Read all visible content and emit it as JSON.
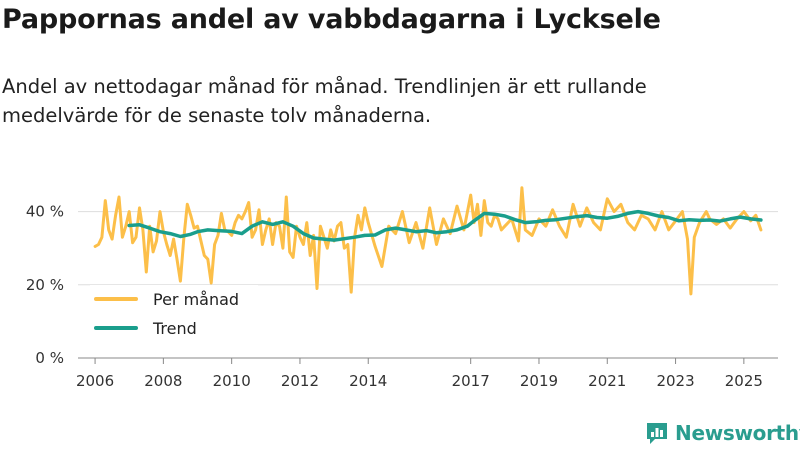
{
  "header": {
    "title": "Pappornas andel av vabbdagarna i Lycksele",
    "subtitle": "Andel av nettodagar månad för månad. Trendlinjen är ett rullande medelvärde för de senaste tolv månaderna."
  },
  "brand": {
    "name": "Newsworthy",
    "color": "#2a9d8f"
  },
  "chart_data": {
    "type": "line",
    "title": "Pappornas andel av vabbdagarna i Lycksele",
    "xlabel": "",
    "ylabel": "",
    "ylim": [
      0,
      50
    ],
    "xlim": [
      2005.5,
      2026.0
    ],
    "yticks": [
      0,
      20,
      40
    ],
    "ytick_labels": [
      "0 %",
      "20 %",
      "40 %"
    ],
    "xticks": [
      2006,
      2008,
      2010,
      2012,
      2014,
      2017,
      2019,
      2021,
      2023,
      2025
    ],
    "xtick_labels": [
      "2006",
      "2008",
      "2010",
      "2012",
      "2014",
      "2017",
      "2019",
      "2021",
      "2023",
      "2025"
    ],
    "grid": true,
    "legend_position": "bottom-left",
    "series": [
      {
        "name": "Per månad",
        "color": "#fcbf49",
        "x": [
          2006.0,
          2006.1,
          2006.2,
          2006.3,
          2006.4,
          2006.5,
          2006.6,
          2006.7,
          2006.8,
          2006.9,
          2007.0,
          2007.1,
          2007.2,
          2007.3,
          2007.4,
          2007.5,
          2007.6,
          2007.7,
          2007.8,
          2007.9,
          2008.0,
          2008.1,
          2008.2,
          2008.3,
          2008.4,
          2008.5,
          2008.6,
          2008.7,
          2008.8,
          2008.9,
          2009.0,
          2009.1,
          2009.2,
          2009.3,
          2009.4,
          2009.5,
          2009.6,
          2009.7,
          2009.8,
          2009.9,
          2010.0,
          2010.1,
          2010.2,
          2010.3,
          2010.4,
          2010.5,
          2010.6,
          2010.7,
          2010.8,
          2010.9,
          2011.0,
          2011.1,
          2011.2,
          2011.3,
          2011.4,
          2011.5,
          2011.6,
          2011.7,
          2011.8,
          2011.9,
          2012.0,
          2012.1,
          2012.2,
          2012.3,
          2012.4,
          2012.5,
          2012.6,
          2012.7,
          2012.8,
          2012.9,
          2013.0,
          2013.1,
          2013.2,
          2013.3,
          2013.4,
          2013.5,
          2013.6,
          2013.7,
          2013.8,
          2013.9,
          2014.0,
          2014.2,
          2014.4,
          2014.6,
          2014.8,
          2015.0,
          2015.2,
          2015.4,
          2015.6,
          2015.8,
          2016.0,
          2016.2,
          2016.4,
          2016.6,
          2016.8,
          2017.0,
          2017.1,
          2017.2,
          2017.3,
          2017.4,
          2017.5,
          2017.6,
          2017.7,
          2017.8,
          2017.9,
          2018.0,
          2018.2,
          2018.4,
          2018.5,
          2018.6,
          2018.8,
          2019.0,
          2019.2,
          2019.4,
          2019.6,
          2019.8,
          2020.0,
          2020.2,
          2020.4,
          2020.6,
          2020.8,
          2021.0,
          2021.2,
          2021.4,
          2021.6,
          2021.8,
          2022.0,
          2022.2,
          2022.4,
          2022.6,
          2022.8,
          2023.0,
          2023.2,
          2023.35,
          2023.45,
          2023.55,
          2023.7,
          2023.9,
          2024.0,
          2024.2,
          2024.4,
          2024.6,
          2024.8,
          2025.0,
          2025.2,
          2025.35,
          2025.5
        ],
        "values": [
          30.5,
          31.0,
          33.0,
          43.0,
          35.0,
          32.5,
          39.0,
          44.0,
          33.0,
          36.0,
          40.0,
          31.5,
          33.0,
          41.0,
          35.0,
          23.5,
          36.0,
          29.0,
          32.0,
          40.0,
          34.5,
          31.0,
          28.0,
          32.5,
          27.0,
          21.0,
          33.0,
          42.0,
          39.0,
          35.5,
          36.0,
          32.0,
          28.0,
          27.0,
          20.5,
          31.0,
          33.5,
          39.5,
          35.0,
          34.5,
          33.5,
          37.0,
          39.0,
          38.0,
          40.0,
          42.5,
          33.0,
          35.0,
          40.5,
          31.0,
          35.0,
          38.0,
          31.0,
          37.0,
          36.0,
          30.0,
          44.0,
          29.0,
          27.5,
          36.0,
          33.0,
          31.0,
          37.0,
          28.0,
          33.5,
          19.0,
          36.0,
          33.0,
          30.0,
          35.0,
          32.0,
          36.0,
          37.0,
          30.0,
          31.0,
          18.0,
          33.0,
          39.0,
          35.0,
          41.0,
          37.0,
          30.5,
          25.0,
          36.0,
          34.0,
          40.0,
          31.5,
          37.0,
          30.0,
          41.0,
          31.0,
          38.0,
          34.0,
          41.5,
          35.0,
          44.5,
          37.0,
          42.0,
          33.5,
          43.0,
          37.0,
          36.0,
          39.0,
          38.0,
          35.0,
          36.0,
          38.0,
          32.0,
          46.5,
          35.0,
          33.5,
          38.0,
          36.0,
          40.5,
          36.0,
          33.0,
          42.0,
          36.0,
          41.0,
          37.0,
          35.0,
          43.5,
          40.0,
          42.0,
          37.0,
          35.0,
          39.0,
          38.0,
          35.0,
          40.0,
          35.0,
          37.5,
          40.0,
          32.5,
          17.5,
          33.0,
          37.0,
          40.0,
          38.0,
          36.5,
          38.0,
          35.5,
          38.0,
          40.0,
          37.5,
          39.0,
          35.0
        ]
      },
      {
        "name": "Trend",
        "color": "#1a9e8c",
        "x": [
          2007.0,
          2007.3,
          2007.6,
          2007.9,
          2008.2,
          2008.5,
          2008.8,
          2009.0,
          2009.3,
          2009.6,
          2010.0,
          2010.3,
          2010.6,
          2010.9,
          2011.2,
          2011.5,
          2011.8,
          2012.1,
          2012.4,
          2012.7,
          2013.0,
          2013.3,
          2013.6,
          2013.9,
          2014.2,
          2014.5,
          2014.8,
          2015.1,
          2015.4,
          2015.7,
          2016.0,
          2016.3,
          2016.6,
          2016.9,
          2017.1,
          2017.4,
          2017.7,
          2018.0,
          2018.3,
          2018.6,
          2018.9,
          2019.2,
          2019.5,
          2019.8,
          2020.1,
          2020.4,
          2020.7,
          2021.0,
          2021.3,
          2021.6,
          2021.9,
          2022.2,
          2022.5,
          2022.8,
          2023.1,
          2023.4,
          2023.7,
          2024.0,
          2024.3,
          2024.6,
          2024.9,
          2025.2,
          2025.5
        ],
        "values": [
          36.2,
          36.4,
          35.5,
          34.5,
          34.0,
          33.2,
          33.8,
          34.5,
          35.0,
          34.8,
          34.6,
          34.0,
          36.0,
          37.2,
          36.5,
          37.2,
          36.0,
          34.0,
          32.8,
          32.5,
          32.2,
          32.6,
          33.0,
          33.5,
          33.6,
          35.0,
          35.5,
          35.0,
          34.5,
          34.8,
          34.2,
          34.5,
          35.0,
          36.0,
          37.5,
          39.5,
          39.3,
          38.8,
          37.8,
          37.0,
          37.2,
          37.6,
          37.8,
          38.2,
          38.6,
          38.9,
          38.4,
          38.2,
          38.7,
          39.5,
          40.0,
          39.5,
          38.8,
          38.4,
          37.5,
          37.8,
          37.6,
          37.7,
          37.4,
          38.0,
          38.5,
          38.0,
          37.7
        ]
      }
    ]
  }
}
